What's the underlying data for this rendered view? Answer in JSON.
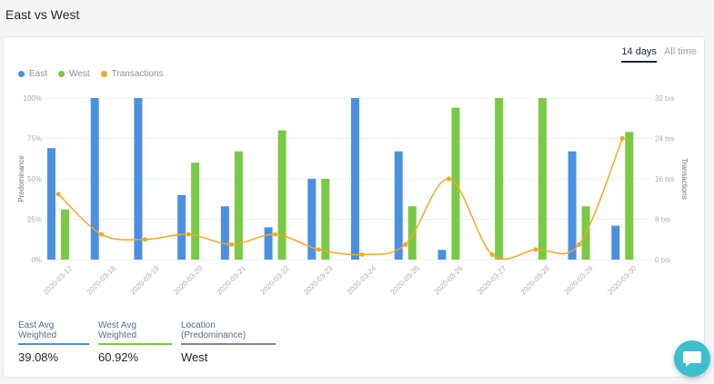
{
  "page": {
    "title": "East vs West"
  },
  "tabs": [
    {
      "label": "14 days",
      "active": true
    },
    {
      "label": "All time",
      "active": false
    }
  ],
  "colors": {
    "east": "#4a90e2",
    "west": "#7ac943",
    "transactions": "#f5a623",
    "location": "#7d8794"
  },
  "chart_data": {
    "type": "bar",
    "categories": [
      "2020-03-17",
      "2020-03-18",
      "2020-03-19",
      "2020-03-20",
      "2020-03-21",
      "2020-03-22",
      "2020-03-23",
      "2020-03-24",
      "2020-03-25",
      "2020-03-26",
      "2020-03-27",
      "2020-03-28",
      "2020-03-29",
      "2020-03-30"
    ],
    "series": [
      {
        "name": "East",
        "kind": "bar",
        "axis": "left",
        "values": [
          69,
          100,
          100,
          40,
          33,
          20,
          50,
          100,
          67,
          6,
          0,
          0,
          67,
          21
        ]
      },
      {
        "name": "West",
        "kind": "bar",
        "axis": "left",
        "values": [
          31,
          0,
          0,
          60,
          67,
          80,
          50,
          0,
          33,
          94,
          100,
          100,
          33,
          79
        ]
      },
      {
        "name": "Transactions",
        "kind": "line",
        "axis": "right",
        "values": [
          13,
          5,
          4,
          5,
          3,
          5,
          2,
          1,
          3,
          16,
          1,
          2,
          3,
          24
        ]
      }
    ],
    "ylabel": "Predominance",
    "y2label": "Transactions",
    "ylim": [
      0,
      100
    ],
    "y2lim": [
      0,
      32
    ],
    "yticks": [
      "0%",
      "25%",
      "50%",
      "75%",
      "100%"
    ],
    "y2ticks": [
      "0 txs",
      "8 txs",
      "16 txs",
      "24 txs",
      "32 txs"
    ],
    "legend_position": "top-left",
    "grid": true
  },
  "stats": [
    {
      "label": "East Avg Weighted",
      "value": "39.08%"
    },
    {
      "label": "West Avg Weighted",
      "value": "60.92%"
    },
    {
      "label": "Location (Predominance)",
      "value": "West"
    }
  ]
}
